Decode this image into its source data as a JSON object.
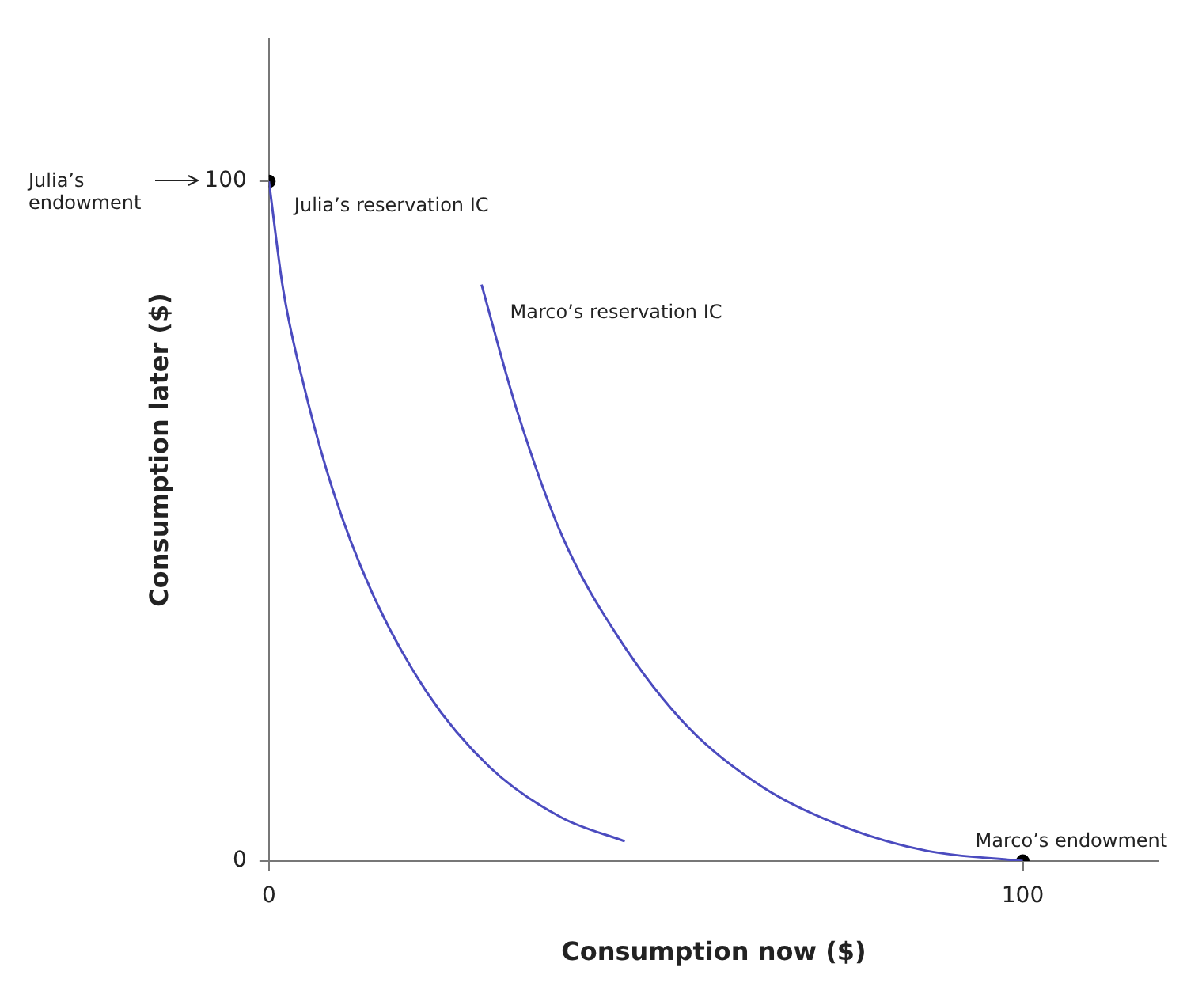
{
  "chart_data": {
    "type": "line",
    "xlabel": "Consumption now ($)",
    "ylabel": "Consumption later ($)",
    "xlim": [
      0,
      118
    ],
    "ylim": [
      0,
      121
    ],
    "xticks": [
      0,
      100
    ],
    "yticks": [
      0,
      100
    ],
    "grid": false,
    "legend": false,
    "series": [
      {
        "color": "#4b4bbf",
        "marker": "none",
        "x": [
          0,
          1.9,
          4.8,
          8.5,
          13.6,
          20.9,
          29.3,
          38.8,
          47.2
        ],
        "values": [
          100,
          84.0,
          69.2,
          54.5,
          39.7,
          24.9,
          13.8,
          6.4,
          2.9
        ]
      },
      {
        "color": "#4b4bbf",
        "marker": "none",
        "x": [
          28.2,
          32.9,
          38.9,
          46.3,
          55.6,
          65.6,
          76.6,
          87.3,
          100
        ],
        "values": [
          84.8,
          66.3,
          47.8,
          33.0,
          19.7,
          10.8,
          4.9,
          1.5,
          0
        ]
      },
      {
        "type": "scatter",
        "color": "#000000",
        "marker": "circle",
        "x": [
          0,
          100
        ],
        "values": [
          100,
          0
        ]
      }
    ],
    "annotations": [
      {
        "text": "Julia’s reservation IC",
        "x": 0,
        "y": 100
      },
      {
        "text": "Marco’s reservation IC",
        "x": 28.2,
        "y": 84.8
      },
      {
        "text": "Marco’s endowment",
        "x": 100,
        "y": 0
      },
      "Julia’s\nendowment"
    ]
  }
}
